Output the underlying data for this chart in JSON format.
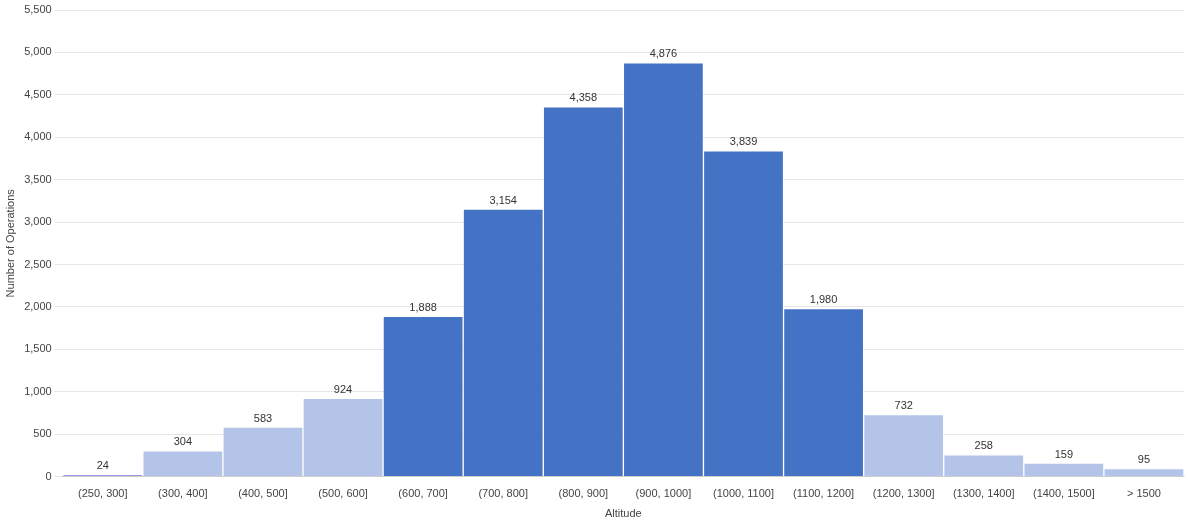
{
  "chart_data": {
    "type": "bar",
    "xlabel": "Altitude",
    "ylabel": "Number of Operations",
    "categories": [
      "(250, 300]",
      "(300, 400]",
      "(400, 500]",
      "(500, 600]",
      "(600, 700]",
      "(700, 800]",
      "(800, 900]",
      "(900, 1000]",
      "(1000, 1100]",
      "(1100, 1200]",
      "(1200, 1300]",
      "(1300, 1400]",
      "(1400, 1500]",
      "> 1500"
    ],
    "values": [
      24,
      304,
      583,
      924,
      1888,
      3154,
      4358,
      4876,
      3839,
      1980,
      732,
      258,
      159,
      95
    ],
    "colors": [
      "#9a9ae0",
      "#b4c4e8",
      "#b4c4e8",
      "#b4c4e8",
      "#4472c4",
      "#4472c4",
      "#4472c4",
      "#4472c4",
      "#4472c4",
      "#4472c4",
      "#b4c4e8",
      "#b4c4e8",
      "#b4c4e8",
      "#b4c4e8"
    ],
    "ylim": [
      0,
      5500
    ],
    "yticks": [
      {
        "value": 0,
        "label": "0"
      },
      {
        "value": 500,
        "label": "500"
      },
      {
        "value": 1000,
        "label": "1,000"
      },
      {
        "value": 1500,
        "label": "1,500"
      },
      {
        "value": 2000,
        "label": "2,000"
      },
      {
        "value": 2500,
        "label": "2,500"
      },
      {
        "value": 3000,
        "label": "3,000"
      },
      {
        "value": 3500,
        "label": "3,500"
      },
      {
        "value": 4000,
        "label": "4,000"
      },
      {
        "value": 4500,
        "label": "4,500"
      },
      {
        "value": 5000,
        "label": "5,000"
      },
      {
        "value": 5500,
        "label": "5,500"
      }
    ],
    "value_labels": [
      "24",
      "304",
      "583",
      "924",
      "1,888",
      "3,154",
      "4,358",
      "4,876",
      "3,839",
      "1,980",
      "732",
      "258",
      "159",
      "95"
    ],
    "grid": "y"
  }
}
